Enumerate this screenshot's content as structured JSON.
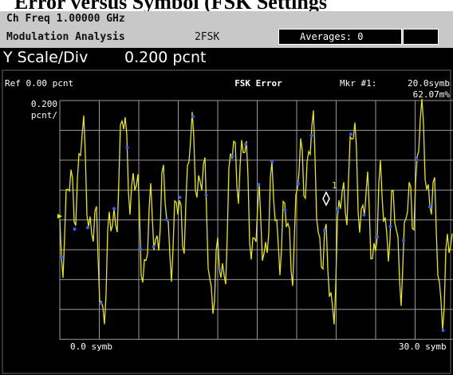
{
  "header": {
    "title": "Error versus Symbol (FSK Settings",
    "ch_freq": "Ch Freq 1.00000 GHz",
    "mode": "Modulation Analysis",
    "format": "2FSK",
    "averages": "Averages: 0"
  },
  "scale": {
    "label": "Y Scale/Div",
    "value": "0.200 pcnt"
  },
  "plot": {
    "ref": "Ref 0.00 pcnt",
    "scale_value": "0.200",
    "scale_unit": "pcnt/",
    "title": "FSK Error",
    "marker_label": "Mkr #1:",
    "marker_x": "20.0symb",
    "marker_y": "62.07m%",
    "marker_number": "1",
    "x_start": "0.0 symb",
    "x_stop": "30.0 symb"
  }
}
